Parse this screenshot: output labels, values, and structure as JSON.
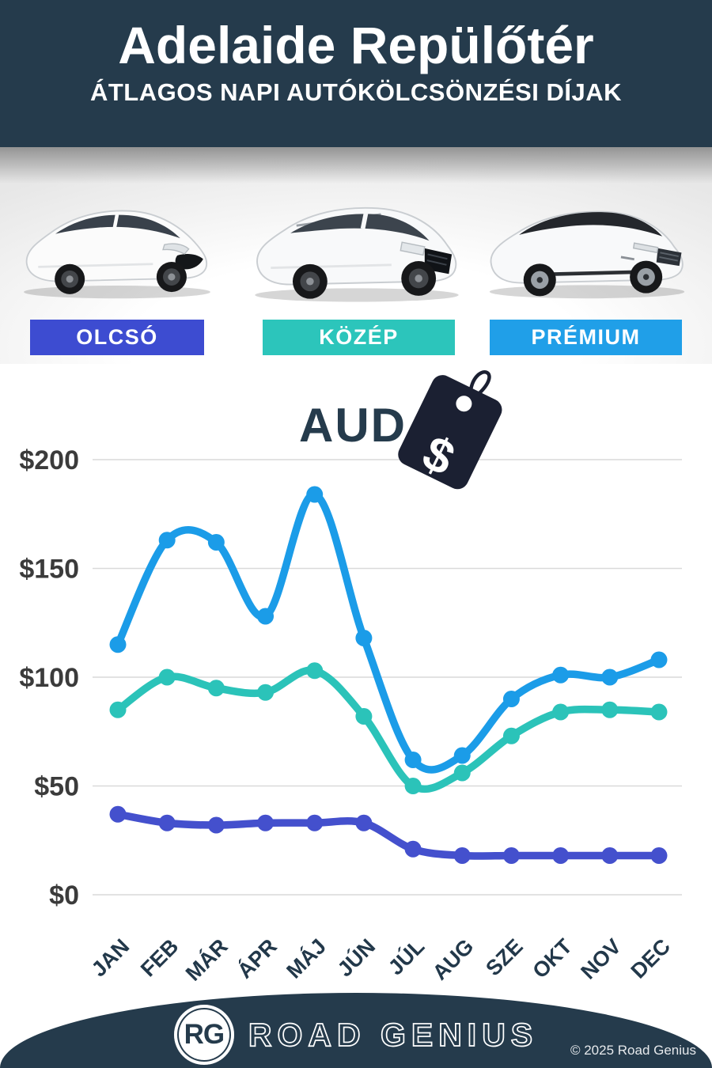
{
  "header": {
    "title": "Adelaide Repülőtér",
    "subtitle": "ÁTLAGOS NAPI AUTÓKÖLCSÖNZÉSI DÍJAK"
  },
  "vehicle_classes": [
    {
      "label": "OLCSÓ",
      "color": "#3D4CD1"
    },
    {
      "label": "KÖZÉP",
      "color": "#2CC5BB"
    },
    {
      "label": "PRÉMIUM",
      "color": "#209FE8"
    }
  ],
  "currency": {
    "code": "AUD",
    "symbol": "$"
  },
  "chart_data": {
    "type": "line",
    "categories": [
      "JAN",
      "FEB",
      "MÁR",
      "ÁPR",
      "MÁJ",
      "JÚN",
      "JÚL",
      "AUG",
      "SZE",
      "OKT",
      "NOV",
      "DEC"
    ],
    "series": [
      {
        "name": "PRÉMIUM",
        "color": "#1B9CE8",
        "values": [
          115,
          163,
          162,
          128,
          184,
          118,
          62,
          64,
          90,
          101,
          100,
          108
        ]
      },
      {
        "name": "KÖZÉP",
        "color": "#2BC3B9",
        "values": [
          85,
          100,
          95,
          93,
          103,
          82,
          50,
          56,
          73,
          84,
          85,
          84
        ]
      },
      {
        "name": "OLCSÓ",
        "color": "#4450CD",
        "values": [
          37,
          33,
          32,
          33,
          33,
          33,
          21,
          18,
          18,
          18,
          18,
          18
        ]
      }
    ],
    "title": "Adelaide Repülőtér — átlagos napi autókölcsönzési díjak (AUD)",
    "xlabel": "",
    "ylabel": "",
    "ytick_labels": [
      "$0",
      "$50",
      "$100",
      "$150",
      "$200"
    ],
    "ytick_values": [
      0,
      50,
      100,
      150,
      200
    ],
    "ylim": [
      0,
      200
    ],
    "grid": true,
    "legend_position": "none"
  },
  "footer": {
    "logo_initials": "RG",
    "brand": "ROAD GENIUS",
    "copyright": "© 2025 Road Genius"
  }
}
